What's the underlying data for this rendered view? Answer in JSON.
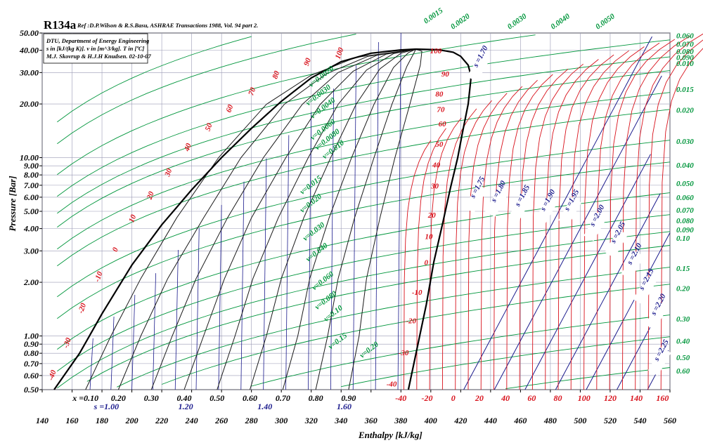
{
  "chart_data": {
    "type": "line",
    "title": "R134a",
    "reference": "Ref :D.P.Wilson & R.S.Basu, ASHRAE Transactions 1988, Vol. 94 part 2.",
    "infobox": [
      "DTU, Department of Energy Engineering",
      "s in [kJ/(kg K)]. v in [m^3/kg]. T in [ºC]",
      "M.J. Skovrup & H.J.H Knudsen. 02-10-07"
    ],
    "xlabel": "Enthalpy [kJ/kg]",
    "ylabel": "Pressure [Bar]",
    "xlim": [
      140,
      560
    ],
    "ylim": [
      0.5,
      50
    ],
    "y_scale": "log",
    "grid": true,
    "x_ticks": [
      "140",
      "160",
      "180",
      "200",
      "220",
      "240",
      "260",
      "280",
      "300",
      "320",
      "340",
      "360",
      "380",
      "400",
      "420",
      "440",
      "460",
      "480",
      "500",
      "520",
      "540",
      "560"
    ],
    "y_ticks": [
      {
        "v": 0.5,
        "label": "0.50"
      },
      {
        "v": 0.6,
        "label": "0.60"
      },
      {
        "v": 0.7,
        "label": "0.70"
      },
      {
        "v": 0.8,
        "label": "0.80"
      },
      {
        "v": 0.9,
        "label": "0.90"
      },
      {
        "v": 1.0,
        "label": "1.00"
      },
      {
        "v": 2.0,
        "label": "2.00"
      },
      {
        "v": 3.0,
        "label": "3.00"
      },
      {
        "v": 4.0,
        "label": "4.00"
      },
      {
        "v": 5.0,
        "label": "5.00"
      },
      {
        "v": 6.0,
        "label": "6.00"
      },
      {
        "v": 7.0,
        "label": "7.00"
      },
      {
        "v": 8.0,
        "label": "8.00"
      },
      {
        "v": 9.0,
        "label": "9.00"
      },
      {
        "v": 10.0,
        "label": "10.00"
      },
      {
        "v": 20.0,
        "label": "20.00"
      },
      {
        "v": 30.0,
        "label": "30.00"
      },
      {
        "v": 40.0,
        "label": "40.00"
      },
      {
        "v": 50.0,
        "label": "50.00"
      }
    ],
    "saturation_liquid": [
      [
        148,
        0.5
      ],
      [
        165,
        0.8
      ],
      [
        180,
        1.33
      ],
      [
        200,
        2.5
      ],
      [
        220,
        4.2
      ],
      [
        240,
        6.6
      ],
      [
        260,
        10
      ],
      [
        280,
        14.6
      ],
      [
        300,
        20.7
      ],
      [
        320,
        28
      ],
      [
        340,
        34.5
      ],
      [
        360,
        38.5
      ],
      [
        380,
        40.2
      ],
      [
        390,
        40.6
      ]
    ],
    "saturation_vapor": [
      [
        390,
        40.6
      ],
      [
        405,
        40.3
      ],
      [
        415,
        39
      ],
      [
        420,
        37
      ],
      [
        425,
        33
      ],
      [
        427,
        28.5
      ],
      [
        425,
        20
      ],
      [
        421,
        13.6
      ],
      [
        418,
        10
      ],
      [
        413,
        6.7
      ],
      [
        408,
        4.3
      ],
      [
        402,
        2.6
      ],
      [
        397,
        1.5
      ],
      [
        392,
        0.95
      ],
      [
        385,
        0.5
      ]
    ],
    "quality_labels": [
      "x =0.10",
      "0.20",
      "0.30",
      "0.40",
      "0.50",
      "0.60",
      "0.70",
      "0.80",
      "0.90"
    ],
    "quality_label_h": [
      169,
      191,
      213,
      235,
      257,
      279,
      301,
      323,
      345
    ],
    "quality_lines": [
      {
        "x": 0.1,
        "pts": [
          [
            169,
            0.5
          ],
          [
            186,
            1
          ],
          [
            206,
            2.1
          ],
          [
            230,
            4.6
          ],
          [
            258,
            10
          ],
          [
            290,
            19.9
          ],
          [
            320,
            29
          ],
          [
            350,
            36.5
          ],
          [
            390,
            40.6
          ]
        ]
      },
      {
        "x": 0.2,
        "pts": [
          [
            191,
            0.5
          ],
          [
            206,
            1
          ],
          [
            224,
            2.1
          ],
          [
            248,
            4.6
          ],
          [
            273,
            10
          ],
          [
            302,
            19.9
          ],
          [
            330,
            29.5
          ],
          [
            358,
            37
          ],
          [
            390,
            40.6
          ]
        ]
      },
      {
        "x": 0.3,
        "pts": [
          [
            213,
            0.5
          ],
          [
            227,
            1
          ],
          [
            243,
            2.1
          ],
          [
            264,
            4.6
          ],
          [
            288,
            10
          ],
          [
            314,
            19.9
          ],
          [
            338,
            30
          ],
          [
            364,
            37.5
          ],
          [
            390,
            40.6
          ]
        ]
      },
      {
        "x": 0.4,
        "pts": [
          [
            235,
            0.5
          ],
          [
            248,
            1
          ],
          [
            262,
            2.1
          ],
          [
            280,
            4.6
          ],
          [
            303,
            10
          ],
          [
            326,
            19.9
          ],
          [
            348,
            30.5
          ],
          [
            370,
            38
          ],
          [
            390,
            40.6
          ]
        ]
      },
      {
        "x": 0.5,
        "pts": [
          [
            257,
            0.5
          ],
          [
            269,
            1
          ],
          [
            281,
            2.1
          ],
          [
            298,
            4.6
          ],
          [
            318,
            10
          ],
          [
            338,
            19.9
          ],
          [
            357,
            31
          ],
          [
            375,
            38.3
          ],
          [
            390,
            40.6
          ]
        ]
      },
      {
        "x": 0.6,
        "pts": [
          [
            279,
            0.5
          ],
          [
            290,
            1
          ],
          [
            300,
            2.1
          ],
          [
            315,
            4.6
          ],
          [
            333,
            10
          ],
          [
            350,
            19.9
          ],
          [
            366,
            31.5
          ],
          [
            380,
            38.5
          ],
          [
            390,
            40.6
          ]
        ]
      },
      {
        "x": 0.7,
        "pts": [
          [
            301,
            0.5
          ],
          [
            311,
            1
          ],
          [
            319,
            2.1
          ],
          [
            332,
            4.6
          ],
          [
            347,
            10
          ],
          [
            362,
            19.9
          ],
          [
            375,
            32
          ],
          [
            385,
            38.8
          ],
          [
            390,
            40.6
          ]
        ]
      },
      {
        "x": 0.8,
        "pts": [
          [
            323,
            0.5
          ],
          [
            331,
            1
          ],
          [
            338,
            2.1
          ],
          [
            349,
            4.6
          ],
          [
            362,
            10
          ],
          [
            374,
            19.9
          ],
          [
            384,
            32.5
          ],
          [
            389,
            39
          ],
          [
            390,
            40.6
          ]
        ]
      },
      {
        "x": 0.9,
        "pts": [
          [
            345,
            0.5
          ],
          [
            352,
            1
          ],
          [
            357,
            2.1
          ],
          [
            366,
            4.6
          ],
          [
            376,
            10
          ],
          [
            386,
            19.9
          ],
          [
            393,
            33
          ],
          [
            394,
            39.5
          ],
          [
            390,
            40.6
          ]
        ]
      }
    ],
    "entropy_labels_bottom": [
      "s =1.00",
      "1.20",
      "1.40",
      "1.60"
    ],
    "entropy_labels_bottom_h": [
      183,
      236,
      289,
      342
    ],
    "entropy_labels": [
      "s =1.70",
      "s =1.75",
      "s =1.80",
      "s =1.85",
      "s =1.90",
      "s =1.95",
      "s =2.00",
      "s =2.05",
      "s =2.10",
      "s =2.15",
      "s =2.20",
      "s =2.25"
    ],
    "entropy_label_pos": [
      [
        431,
        32
      ],
      [
        429,
        5.9
      ],
      [
        443,
        5.6
      ],
      [
        459,
        5.3
      ],
      [
        476,
        5.0
      ],
      [
        492,
        5.0
      ],
      [
        509,
        4.1
      ],
      [
        523,
        3.3
      ],
      [
        534,
        2.5
      ],
      [
        542,
        1.8
      ],
      [
        550,
        1.3
      ],
      [
        552,
        0.72
      ]
    ],
    "temperature_labels_liquid": [
      "-40",
      "-30",
      "-20",
      "-10",
      "0",
      "10",
      "20",
      "30",
      "40",
      "50",
      "60",
      "70",
      "80",
      "90",
      "100"
    ],
    "temperature_labels_liquid_pos": [
      [
        147,
        0.56
      ],
      [
        157,
        0.85
      ],
      [
        167,
        1.33
      ],
      [
        178,
        2.0
      ],
      [
        190,
        2.95
      ],
      [
        201,
        4.3
      ],
      [
        213,
        5.8
      ],
      [
        225,
        7.8
      ],
      [
        238,
        10.8
      ],
      [
        252,
        14.0
      ],
      [
        266,
        17.8
      ],
      [
        281,
        22.2
      ],
      [
        297,
        27.5
      ],
      [
        318,
        32.5
      ],
      [
        339,
        35.5
      ]
    ],
    "temperature_labels_vapor": [
      "-40",
      "-30",
      "-20",
      "-10",
      "0",
      "10",
      "20",
      "30",
      "40",
      "50",
      "60",
      "70",
      "80",
      "90",
      "100"
    ],
    "temperature_labels_vapor_pos": [
      [
        381,
        0.52
      ],
      [
        389,
        0.78
      ],
      [
        394,
        1.18
      ],
      [
        398,
        1.7
      ],
      [
        402,
        2.5
      ],
      [
        405,
        3.5
      ],
      [
        407,
        4.6
      ],
      [
        409,
        6.7
      ],
      [
        410,
        8.8
      ],
      [
        412,
        11.5
      ],
      [
        414,
        15.0
      ],
      [
        413,
        18.0
      ],
      [
        412,
        22.0
      ],
      [
        416,
        28.5
      ],
      [
        411,
        38.5
      ]
    ],
    "temperature_labels_top": [
      "100"
    ],
    "volume_labels_inside": [
      "v=0.0020",
      "v=0.0030",
      "v=0.0040",
      "v=0.0060",
      "v=0.0080",
      "v=0.010",
      "v=0.015",
      "v=0.020",
      "v=0.030",
      "v=0.040",
      "v=0.060",
      "v=0.080",
      "v=0.10",
      "v=0.15",
      "v=0.20"
    ],
    "volume_labels_inside_pos": [
      [
        320,
        24.8
      ],
      [
        318,
        19.5
      ],
      [
        321,
        16.5
      ],
      [
        321,
        12.5
      ],
      [
        324,
        11.0
      ],
      [
        329,
        9.8
      ],
      [
        314,
        6.2
      ],
      [
        314,
        4.9
      ],
      [
        316,
        3.4
      ],
      [
        318,
        2.6
      ],
      [
        322,
        1.8
      ],
      [
        324,
        1.4
      ],
      [
        330,
        1.2
      ],
      [
        333,
        0.84
      ],
      [
        354,
        0.75
      ]
    ],
    "volume_labels_right": [
      "0.060",
      "0.070",
      "0.080",
      "0.090",
      "0.010",
      "0.015",
      "0.020",
      "0.030",
      "0.040",
      "0.050",
      "0.060",
      "0.070",
      "0.080",
      "0.090",
      "0.10",
      "0.15",
      "0.20",
      "0.30",
      "0.40",
      "0.50",
      "0.60"
    ],
    "volume_labels_right_p": [
      48.5,
      43.5,
      39.5,
      36.5,
      33.8,
      24.2,
      18.5,
      12.4,
      9.1,
      7.2,
      6.0,
      5.1,
      4.45,
      3.95,
      3.55,
      2.4,
      1.85,
      1.25,
      0.94,
      0.76,
      0.64
    ],
    "volume_labels_top": [
      "0.0015",
      "0.0020",
      "0.0030",
      "0.0040",
      "0.0050"
    ],
    "volume_labels_top_h": [
      392,
      410,
      448,
      477,
      507
    ]
  },
  "colors": {
    "quality": "#1a1a1a",
    "entropy": "#1a1a8c",
    "temperature": "#d8111b",
    "volume": "#00963c",
    "saturation": "#000000",
    "grid": "#9a9ab5"
  }
}
